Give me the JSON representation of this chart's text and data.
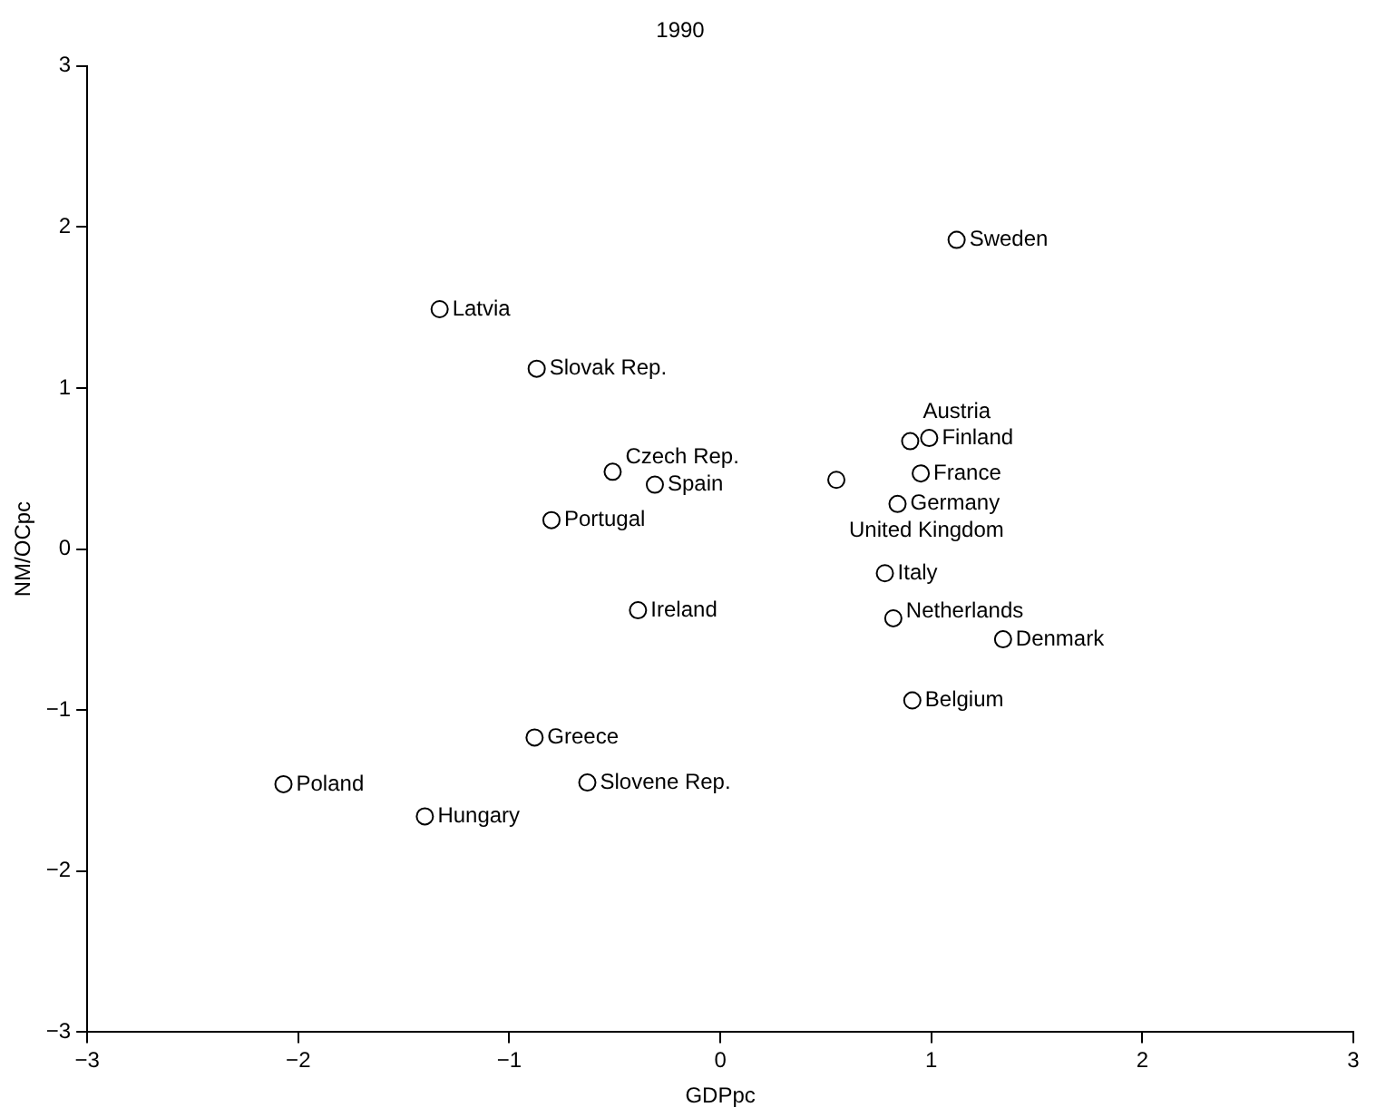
{
  "chart_data": {
    "type": "scatter",
    "title": "1990",
    "xlabel": "GDPpc",
    "ylabel": "NM/OCpc",
    "x": [
      1.12,
      -1.33,
      -0.87,
      0.99,
      0.9,
      0.95,
      0.55,
      0.84,
      -0.51,
      -0.31,
      -0.8,
      0.78,
      -0.39,
      0.82,
      1.34,
      0.91,
      -0.88,
      -2.07,
      -0.63,
      -1.4
    ],
    "values": [
      1.92,
      1.49,
      1.12,
      0.69,
      0.67,
      0.47,
      0.43,
      0.28,
      0.48,
      0.4,
      0.18,
      -0.15,
      -0.38,
      -0.43,
      -0.56,
      -0.94,
      -1.17,
      -1.46,
      -1.45,
      -1.66
    ],
    "color": "#000000",
    "marker": "circle",
    "grid": false,
    "legend": false,
    "xlim": [
      -3,
      3
    ],
    "ylim": [
      -3,
      3
    ],
    "xticks": [
      {
        "value": -3,
        "label": "−3"
      },
      {
        "value": -2,
        "label": "−2"
      },
      {
        "value": -1,
        "label": "−1"
      },
      0,
      1,
      2,
      3
    ],
    "yticks": [
      {
        "value": -3,
        "label": "−3"
      },
      {
        "value": -2,
        "label": "−2"
      },
      {
        "value": -1,
        "label": "−1"
      },
      0,
      1,
      2,
      3
    ],
    "annotations": [
      {
        "text": "Sweden",
        "x": 1.12,
        "y": 1.92
      },
      {
        "text": "Latvia",
        "x": -1.33,
        "y": 1.49
      },
      {
        "text": "Slovak Rep.",
        "x": -0.87,
        "y": 1.12
      },
      {
        "text": "Finland",
        "x": 0.99,
        "y": 0.69
      },
      {
        "text": "Austria",
        "x": 0.9,
        "y": 0.67
      },
      {
        "text": "France",
        "x": 0.95,
        "y": 0.47
      },
      {
        "text": "United Kingdom",
        "x": 0.55,
        "y": 0.43
      },
      {
        "text": "Germany",
        "x": 0.84,
        "y": 0.28
      },
      {
        "text": "Czech Rep.",
        "x": -0.51,
        "y": 0.48
      },
      {
        "text": "Spain",
        "x": -0.31,
        "y": 0.4
      },
      {
        "text": "Portugal",
        "x": -0.8,
        "y": 0.18
      },
      {
        "text": "Italy",
        "x": 0.78,
        "y": -0.15
      },
      {
        "text": "Ireland",
        "x": -0.39,
        "y": -0.38
      },
      {
        "text": "Netherlands",
        "x": 0.82,
        "y": -0.43
      },
      {
        "text": "Denmark",
        "x": 1.34,
        "y": -0.56
      },
      {
        "text": "Belgium",
        "x": 0.91,
        "y": -0.94
      },
      {
        "text": "Greece",
        "x": -0.88,
        "y": -1.17
      },
      {
        "text": "Poland",
        "x": -2.07,
        "y": -1.46
      },
      {
        "text": "Slovene Rep.",
        "x": -0.63,
        "y": -1.45
      },
      {
        "text": "Hungary",
        "x": -1.4,
        "y": -1.66
      }
    ]
  }
}
